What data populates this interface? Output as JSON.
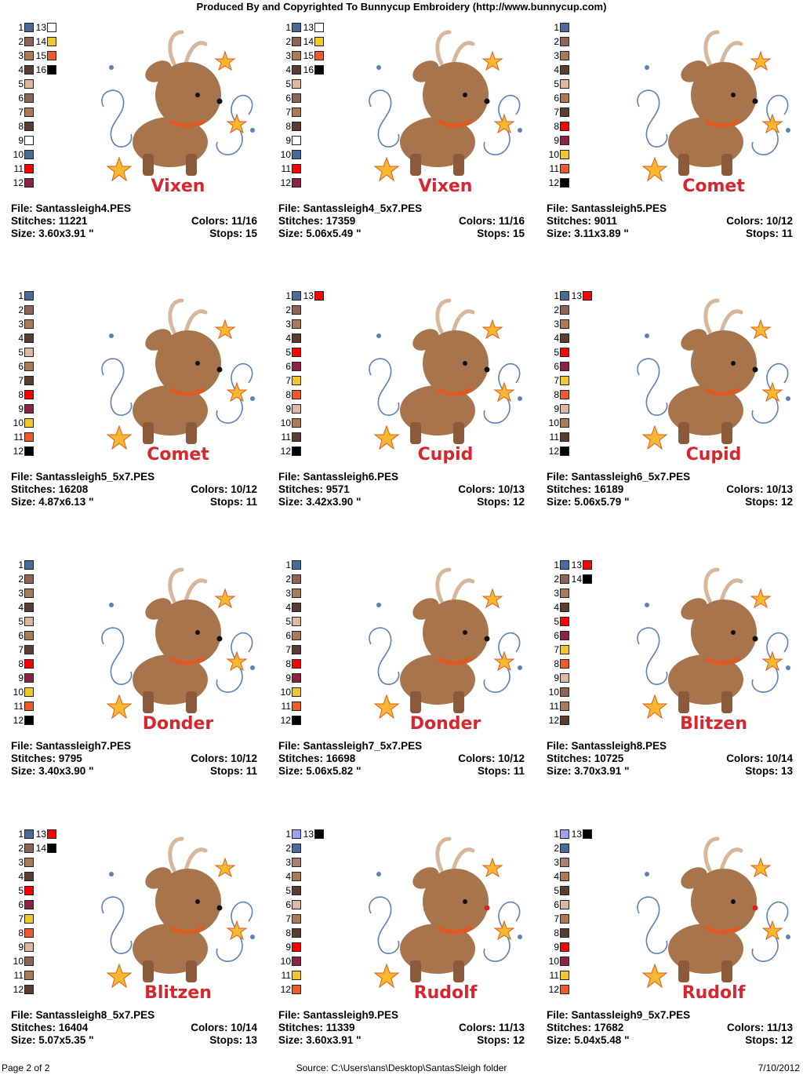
{
  "header": {
    "title": "Produced By and Copyrighted To Bunnycup Embroidery (http://www.bunnycup.com)"
  },
  "footer": {
    "page": "Page 2 of 2",
    "source": "Source: C:\\Users\\ans\\Desktop\\SantasSleigh folder",
    "date": "7/10/2012"
  },
  "palette_colors": {
    "blue": "#4a6a9c",
    "mauve": "#8e6458",
    "tan": "#a87a56",
    "darkbrown": "#5a3c30",
    "skin": "#dcb8a2",
    "white": "#ffffff",
    "red": "#ff0000",
    "wine": "#8c2440",
    "yellow": "#f0c828",
    "orange": "#ee5a2a",
    "black": "#000000",
    "lavender": "#a0a0f0"
  },
  "designs": [
    {
      "file_label": "File: Santassleigh4.PES",
      "stitches_label": "Stitches: 11221",
      "colors_label": "Colors: 11/16",
      "size_label": "Size: 3.60x3.91 \"",
      "stops_label": "Stops: 15",
      "reindeer_name": "Vixen",
      "icon": "vixen-reindeer-embroidery-icon",
      "swatches": [
        {
          "n": "1",
          "c": "#4a6a9c"
        },
        {
          "n": "2",
          "c": "#8e6458"
        },
        {
          "n": "3",
          "c": "#a87a56"
        },
        {
          "n": "4",
          "c": "#5a3c30"
        },
        {
          "n": "5",
          "c": "#dcb8a2"
        },
        {
          "n": "6",
          "c": "#8e6458"
        },
        {
          "n": "7",
          "c": "#a87a56"
        },
        {
          "n": "8",
          "c": "#5a3c30"
        },
        {
          "n": "9",
          "c": "#ffffff"
        },
        {
          "n": "10",
          "c": "#4a6a9c"
        },
        {
          "n": "11",
          "c": "#ff0000"
        },
        {
          "n": "12",
          "c": "#8c2440"
        },
        {
          "n": "13",
          "c": "#ffffff"
        },
        {
          "n": "14",
          "c": "#f0c828"
        },
        {
          "n": "15",
          "c": "#ee5a2a"
        },
        {
          "n": "16",
          "c": "#000000"
        }
      ]
    },
    {
      "file_label": "File: Santassleigh4_5x7.PES",
      "stitches_label": "Stitches: 17359",
      "colors_label": "Colors: 11/16",
      "size_label": "Size: 5.06x5.49 \"",
      "stops_label": "Stops: 15",
      "reindeer_name": "Vixen",
      "icon": "vixen-reindeer-embroidery-icon",
      "swatches": [
        {
          "n": "1",
          "c": "#4a6a9c"
        },
        {
          "n": "2",
          "c": "#8e6458"
        },
        {
          "n": "3",
          "c": "#a87a56"
        },
        {
          "n": "4",
          "c": "#5a3c30"
        },
        {
          "n": "5",
          "c": "#dcb8a2"
        },
        {
          "n": "6",
          "c": "#8e6458"
        },
        {
          "n": "7",
          "c": "#a87a56"
        },
        {
          "n": "8",
          "c": "#5a3c30"
        },
        {
          "n": "9",
          "c": "#ffffff"
        },
        {
          "n": "10",
          "c": "#4a6a9c"
        },
        {
          "n": "11",
          "c": "#ff0000"
        },
        {
          "n": "12",
          "c": "#8c2440"
        },
        {
          "n": "13",
          "c": "#ffffff"
        },
        {
          "n": "14",
          "c": "#f0c828"
        },
        {
          "n": "15",
          "c": "#ee5a2a"
        },
        {
          "n": "16",
          "c": "#000000"
        }
      ]
    },
    {
      "file_label": "File: Santassleigh5.PES",
      "stitches_label": "Stitches: 9011",
      "colors_label": "Colors: 10/12",
      "size_label": "Size: 3.11x3.89 \"",
      "stops_label": "Stops: 11",
      "reindeer_name": "Comet",
      "icon": "comet-reindeer-embroidery-icon",
      "swatches": [
        {
          "n": "1",
          "c": "#4a6a9c"
        },
        {
          "n": "2",
          "c": "#8e6458"
        },
        {
          "n": "3",
          "c": "#a87a56"
        },
        {
          "n": "4",
          "c": "#5a3c30"
        },
        {
          "n": "5",
          "c": "#dcb8a2"
        },
        {
          "n": "6",
          "c": "#a87a56"
        },
        {
          "n": "7",
          "c": "#5a3c30"
        },
        {
          "n": "8",
          "c": "#ff0000"
        },
        {
          "n": "9",
          "c": "#8c2440"
        },
        {
          "n": "10",
          "c": "#f0c828"
        },
        {
          "n": "11",
          "c": "#ee5a2a"
        },
        {
          "n": "12",
          "c": "#000000"
        }
      ]
    },
    {
      "file_label": "File: Santassleigh5_5x7.PES",
      "stitches_label": "Stitches: 16208",
      "colors_label": "Colors: 10/12",
      "size_label": "Size: 4.87x6.13 \"",
      "stops_label": "Stops: 11",
      "reindeer_name": "Comet",
      "icon": "comet-reindeer-embroidery-icon",
      "swatches": [
        {
          "n": "1",
          "c": "#4a6a9c"
        },
        {
          "n": "2",
          "c": "#8e6458"
        },
        {
          "n": "3",
          "c": "#a87a56"
        },
        {
          "n": "4",
          "c": "#5a3c30"
        },
        {
          "n": "5",
          "c": "#dcb8a2"
        },
        {
          "n": "6",
          "c": "#a87a56"
        },
        {
          "n": "7",
          "c": "#5a3c30"
        },
        {
          "n": "8",
          "c": "#ff0000"
        },
        {
          "n": "9",
          "c": "#8c2440"
        },
        {
          "n": "10",
          "c": "#f0c828"
        },
        {
          "n": "11",
          "c": "#ee5a2a"
        },
        {
          "n": "12",
          "c": "#000000"
        }
      ]
    },
    {
      "file_label": "File: Santassleigh6.PES",
      "stitches_label": "Stitches: 9571",
      "colors_label": "Colors: 10/13",
      "size_label": "Size: 3.42x3.90 \"",
      "stops_label": "Stops: 12",
      "reindeer_name": "Cupid",
      "icon": "cupid-reindeer-embroidery-icon",
      "swatches": [
        {
          "n": "1",
          "c": "#4a6a9c"
        },
        {
          "n": "2",
          "c": "#8e6458"
        },
        {
          "n": "3",
          "c": "#a87a56"
        },
        {
          "n": "4",
          "c": "#5a3c30"
        },
        {
          "n": "5",
          "c": "#ff0000"
        },
        {
          "n": "6",
          "c": "#8c2440"
        },
        {
          "n": "7",
          "c": "#f0c828"
        },
        {
          "n": "8",
          "c": "#ee5a2a"
        },
        {
          "n": "9",
          "c": "#dcb8a2"
        },
        {
          "n": "10",
          "c": "#a87a56"
        },
        {
          "n": "11",
          "c": "#5a3c30"
        },
        {
          "n": "12",
          "c": "#000000"
        },
        {
          "n": "13",
          "c": "#ff0000"
        }
      ]
    },
    {
      "file_label": "File: Santassleigh6_5x7.PES",
      "stitches_label": "Stitches: 16189",
      "colors_label": "Colors: 10/13",
      "size_label": "Size: 5.06x5.79 \"",
      "stops_label": "Stops: 12",
      "reindeer_name": "Cupid",
      "icon": "cupid-reindeer-embroidery-icon",
      "swatches": [
        {
          "n": "1",
          "c": "#4a6a9c"
        },
        {
          "n": "2",
          "c": "#8e6458"
        },
        {
          "n": "3",
          "c": "#a87a56"
        },
        {
          "n": "4",
          "c": "#5a3c30"
        },
        {
          "n": "5",
          "c": "#ff0000"
        },
        {
          "n": "6",
          "c": "#8c2440"
        },
        {
          "n": "7",
          "c": "#f0c828"
        },
        {
          "n": "8",
          "c": "#ee5a2a"
        },
        {
          "n": "9",
          "c": "#dcb8a2"
        },
        {
          "n": "10",
          "c": "#a87a56"
        },
        {
          "n": "11",
          "c": "#5a3c30"
        },
        {
          "n": "12",
          "c": "#000000"
        },
        {
          "n": "13",
          "c": "#ff0000"
        }
      ]
    },
    {
      "file_label": "File: Santassleigh7.PES",
      "stitches_label": "Stitches: 9795",
      "colors_label": "Colors: 10/12",
      "size_label": "Size: 3.40x3.90 \"",
      "stops_label": "Stops: 11",
      "reindeer_name": "Donder",
      "icon": "donder-reindeer-embroidery-icon",
      "swatches": [
        {
          "n": "1",
          "c": "#4a6a9c"
        },
        {
          "n": "2",
          "c": "#8e6458"
        },
        {
          "n": "3",
          "c": "#a87a56"
        },
        {
          "n": "4",
          "c": "#5a3c30"
        },
        {
          "n": "5",
          "c": "#dcb8a2"
        },
        {
          "n": "6",
          "c": "#a87a56"
        },
        {
          "n": "7",
          "c": "#5a3c30"
        },
        {
          "n": "8",
          "c": "#ff0000"
        },
        {
          "n": "9",
          "c": "#8c2440"
        },
        {
          "n": "10",
          "c": "#f0c828"
        },
        {
          "n": "11",
          "c": "#ee5a2a"
        },
        {
          "n": "12",
          "c": "#000000"
        }
      ]
    },
    {
      "file_label": "File: Santassleigh7_5x7.PES",
      "stitches_label": "Stitches: 16698",
      "colors_label": "Colors: 10/12",
      "size_label": "Size: 5.06x5.82 \"",
      "stops_label": "Stops: 11",
      "reindeer_name": "Donder",
      "icon": "donder-reindeer-embroidery-icon",
      "swatches": [
        {
          "n": "1",
          "c": "#4a6a9c"
        },
        {
          "n": "2",
          "c": "#8e6458"
        },
        {
          "n": "3",
          "c": "#a87a56"
        },
        {
          "n": "4",
          "c": "#5a3c30"
        },
        {
          "n": "5",
          "c": "#dcb8a2"
        },
        {
          "n": "6",
          "c": "#a87a56"
        },
        {
          "n": "7",
          "c": "#5a3c30"
        },
        {
          "n": "8",
          "c": "#ff0000"
        },
        {
          "n": "9",
          "c": "#8c2440"
        },
        {
          "n": "10",
          "c": "#f0c828"
        },
        {
          "n": "11",
          "c": "#ee5a2a"
        },
        {
          "n": "12",
          "c": "#000000"
        }
      ]
    },
    {
      "file_label": "File: Santassleigh8.PES",
      "stitches_label": "Stitches: 10725",
      "colors_label": "Colors: 10/14",
      "size_label": "Size: 3.70x3.91 \"",
      "stops_label": "Stops: 13",
      "reindeer_name": "Blitzen",
      "icon": "blitzen-reindeer-embroidery-icon",
      "swatches": [
        {
          "n": "1",
          "c": "#4a6a9c"
        },
        {
          "n": "2",
          "c": "#8e6458"
        },
        {
          "n": "3",
          "c": "#a87a56"
        },
        {
          "n": "4",
          "c": "#5a3c30"
        },
        {
          "n": "5",
          "c": "#ff0000"
        },
        {
          "n": "6",
          "c": "#8c2440"
        },
        {
          "n": "7",
          "c": "#f0c828"
        },
        {
          "n": "8",
          "c": "#ee5a2a"
        },
        {
          "n": "9",
          "c": "#dcb8a2"
        },
        {
          "n": "10",
          "c": "#8e6458"
        },
        {
          "n": "11",
          "c": "#a87a56"
        },
        {
          "n": "12",
          "c": "#5a3c30"
        },
        {
          "n": "13",
          "c": "#ff0000"
        },
        {
          "n": "14",
          "c": "#000000"
        }
      ]
    },
    {
      "file_label": "File: Santassleigh8_5x7.PES",
      "stitches_label": "Stitches: 16404",
      "colors_label": "Colors: 10/14",
      "size_label": "Size: 5.07x5.35 \"",
      "stops_label": "Stops: 13",
      "reindeer_name": "Blitzen",
      "icon": "blitzen-reindeer-embroidery-icon",
      "swatches": [
        {
          "n": "1",
          "c": "#4a6a9c"
        },
        {
          "n": "2",
          "c": "#8e6458"
        },
        {
          "n": "3",
          "c": "#a87a56"
        },
        {
          "n": "4",
          "c": "#5a3c30"
        },
        {
          "n": "5",
          "c": "#ff0000"
        },
        {
          "n": "6",
          "c": "#8c2440"
        },
        {
          "n": "7",
          "c": "#f0c828"
        },
        {
          "n": "8",
          "c": "#ee5a2a"
        },
        {
          "n": "9",
          "c": "#dcb8a2"
        },
        {
          "n": "10",
          "c": "#8e6458"
        },
        {
          "n": "11",
          "c": "#a87a56"
        },
        {
          "n": "12",
          "c": "#5a3c30"
        },
        {
          "n": "13",
          "c": "#ff0000"
        },
        {
          "n": "14",
          "c": "#000000"
        }
      ]
    },
    {
      "file_label": "File: Santassleigh9.PES",
      "stitches_label": "Stitches: 11339",
      "colors_label": "Colors: 11/13",
      "size_label": "Size: 3.60x3.91 \"",
      "stops_label": "Stops: 12",
      "reindeer_name": "Rudolf",
      "icon": "rudolf-reindeer-embroidery-icon",
      "swatches": [
        {
          "n": "1",
          "c": "#a0a0f0"
        },
        {
          "n": "2",
          "c": "#4a6a9c"
        },
        {
          "n": "3",
          "c": "#a88070"
        },
        {
          "n": "4",
          "c": "#a87a56"
        },
        {
          "n": "5",
          "c": "#5a3c30"
        },
        {
          "n": "6",
          "c": "#dcb8a2"
        },
        {
          "n": "7",
          "c": "#a87a56"
        },
        {
          "n": "8",
          "c": "#5a3c30"
        },
        {
          "n": "9",
          "c": "#ff0000"
        },
        {
          "n": "10",
          "c": "#8c2440"
        },
        {
          "n": "11",
          "c": "#f0c828"
        },
        {
          "n": "12",
          "c": "#ee5a2a"
        },
        {
          "n": "13",
          "c": "#000000"
        }
      ]
    },
    {
      "file_label": "File: Santassleigh9_5x7.PES",
      "stitches_label": "Stitches: 17682",
      "colors_label": "Colors: 11/13",
      "size_label": "Size: 5.04x5.48 \"",
      "stops_label": "Stops: 12",
      "reindeer_name": "Rudolf",
      "icon": "rudolf-reindeer-embroidery-icon",
      "swatches": [
        {
          "n": "1",
          "c": "#a0a0f0"
        },
        {
          "n": "2",
          "c": "#4a6a9c"
        },
        {
          "n": "3",
          "c": "#a88070"
        },
        {
          "n": "4",
          "c": "#a87a56"
        },
        {
          "n": "5",
          "c": "#5a3c30"
        },
        {
          "n": "6",
          "c": "#dcb8a2"
        },
        {
          "n": "7",
          "c": "#a87a56"
        },
        {
          "n": "8",
          "c": "#5a3c30"
        },
        {
          "n": "9",
          "c": "#ff0000"
        },
        {
          "n": "10",
          "c": "#8c2440"
        },
        {
          "n": "11",
          "c": "#f0c828"
        },
        {
          "n": "12",
          "c": "#ee5a2a"
        },
        {
          "n": "13",
          "c": "#000000"
        }
      ]
    }
  ]
}
